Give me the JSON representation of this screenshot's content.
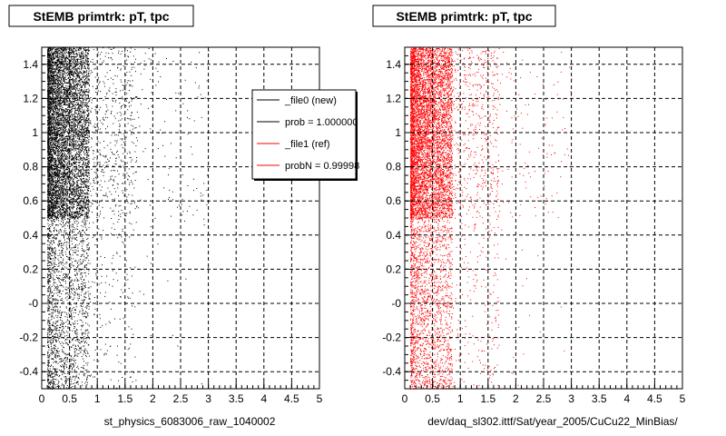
{
  "chart_data": [
    {
      "type": "scatter",
      "title": "StEMB primtrk: pT, tpc",
      "xlabel": "st_physics_6083006_raw_1040002",
      "ylabel": "",
      "xlim": [
        0,
        5
      ],
      "ylim": [
        -0.5,
        1.5
      ],
      "x_ticks": [
        "0",
        "0.5",
        "1",
        "1.5",
        "2",
        "2.5",
        "3",
        "3.5",
        "4",
        "4.5",
        "5"
      ],
      "y_ticks": [
        "-0.4",
        "-0.2",
        "-0",
        "0.2",
        "0.4",
        "0.6",
        "0.8",
        "1",
        "1.2",
        "1.4"
      ],
      "grid": true,
      "series": [
        {
          "name": "_file0 (new)",
          "color": "#000000"
        }
      ],
      "legend": {
        "placement": "top-right",
        "entries": [
          {
            "label": "_file0 (new)",
            "color": "#000000"
          },
          {
            "label": "prob = 1.000000",
            "color": "#000000"
          },
          {
            "label": "_file1 (ref)",
            "color": "#ff0000"
          },
          {
            "label": "probN = 0.99998",
            "color": "#ff0000"
          }
        ]
      }
    },
    {
      "type": "scatter",
      "title": "StEMB primtrk: pT, tpc",
      "xlabel": "dev/daq_sl302.ittf/Sat/year_2005/CuCu22_MinBias/",
      "ylabel": "",
      "xlim": [
        0,
        5
      ],
      "ylim": [
        -0.5,
        1.5
      ],
      "x_ticks": [
        "0",
        "0.5",
        "1",
        "1.5",
        "2",
        "2.5",
        "3",
        "3.5",
        "4",
        "4.5",
        "5"
      ],
      "y_ticks": [
        "-0.4",
        "-0.2",
        "-0",
        "0.2",
        "0.4",
        "0.6",
        "0.8",
        "1",
        "1.2",
        "1.4"
      ],
      "grid": true,
      "series": [
        {
          "name": "_file1 (ref)",
          "color": "#ff0000"
        }
      ]
    }
  ]
}
